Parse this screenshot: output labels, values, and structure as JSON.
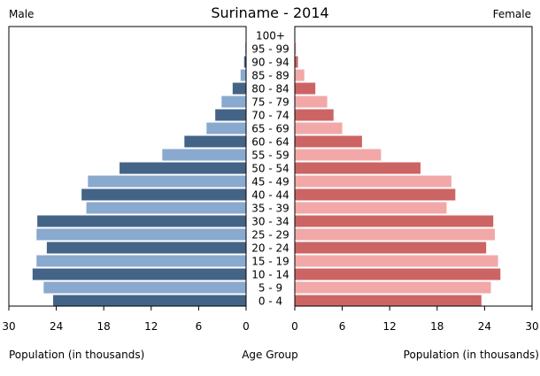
{
  "chart_data": {
    "type": "bar",
    "title": "Suriname - 2014",
    "left_label": "Male",
    "right_label": "Female",
    "xlabel_left": "Population (in thousands)",
    "xlabel_center": "Age Group",
    "xlabel_right": "Population (in thousands)",
    "xlim": [
      0,
      30
    ],
    "ticks": [
      "30",
      "24",
      "18",
      "12",
      "6",
      "0"
    ],
    "ticks_right": [
      "0",
      "6",
      "12",
      "18",
      "24",
      "30"
    ],
    "categories": [
      "0 - 4",
      "5 - 9",
      "10 - 14",
      "15 - 19",
      "20 - 24",
      "25 - 29",
      "30 - 34",
      "35 - 39",
      "40 - 44",
      "45 - 49",
      "50 - 54",
      "55 - 59",
      "60 - 64",
      "65 - 69",
      "70 - 74",
      "75 - 79",
      "80 - 84",
      "85 - 89",
      "90 - 94",
      "95 - 99",
      "100+"
    ],
    "series": [
      {
        "name": "Male",
        "values": [
          24.4,
          25.6,
          27.0,
          26.5,
          25.2,
          26.5,
          26.4,
          20.2,
          20.8,
          20.0,
          16.0,
          10.6,
          7.8,
          5.0,
          3.9,
          3.1,
          1.7,
          0.7,
          0.25,
          0.1,
          0.05
        ],
        "colors": [
          "#436487",
          "#89a9cf"
        ]
      },
      {
        "name": "Female",
        "values": [
          23.6,
          24.8,
          26.0,
          25.7,
          24.2,
          25.3,
          25.1,
          19.2,
          20.3,
          19.8,
          15.9,
          10.9,
          8.5,
          6.0,
          4.9,
          4.1,
          2.6,
          1.2,
          0.4,
          0.15,
          0.05
        ],
        "colors": [
          "#cc6464",
          "#f2a8a8"
        ]
      }
    ],
    "grid": false
  }
}
